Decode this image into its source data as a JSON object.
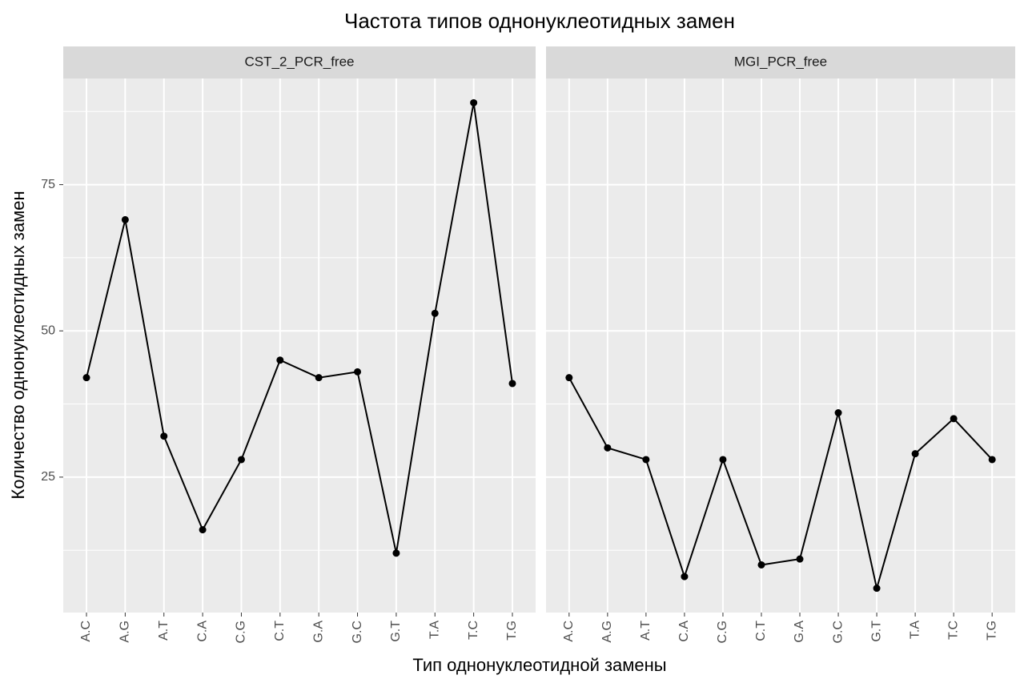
{
  "title": "Частота типов однонуклеотидных замен",
  "x_label": "Тип однонуклеотидной замены",
  "y_label": "Количество однонуклеотидных замен",
  "chart_data": [
    {
      "type": "line",
      "title": "CST_2_PCR_free",
      "categories": [
        "A.C",
        "A.G",
        "A.T",
        "C.A",
        "C.G",
        "C.T",
        "G.A",
        "G.C",
        "G.T",
        "T.A",
        "T.C",
        "T.G"
      ],
      "values": [
        42,
        69,
        32,
        16,
        28,
        45,
        42,
        43,
        12,
        53,
        89,
        41
      ],
      "color": "#000000",
      "ylim": [
        1.85,
        93.15
      ],
      "yticks": [
        25,
        50,
        75
      ],
      "yminorticks": [
        12.5,
        37.5,
        62.5,
        87.5
      ],
      "grid": true
    },
    {
      "type": "line",
      "title": "MGI_PCR_free",
      "categories": [
        "A.C",
        "A.G",
        "A.T",
        "C.A",
        "C.G",
        "C.T",
        "G.A",
        "G.C",
        "G.T",
        "T.A",
        "T.C",
        "T.G"
      ],
      "values": [
        42,
        30,
        28,
        8,
        28,
        10,
        11,
        36,
        6,
        29,
        35,
        28
      ],
      "color": "#000000",
      "ylim": [
        1.85,
        93.15
      ],
      "yticks": [
        25,
        50,
        75
      ],
      "yminorticks": [
        12.5,
        37.5,
        62.5,
        87.5
      ],
      "grid": true
    }
  ]
}
